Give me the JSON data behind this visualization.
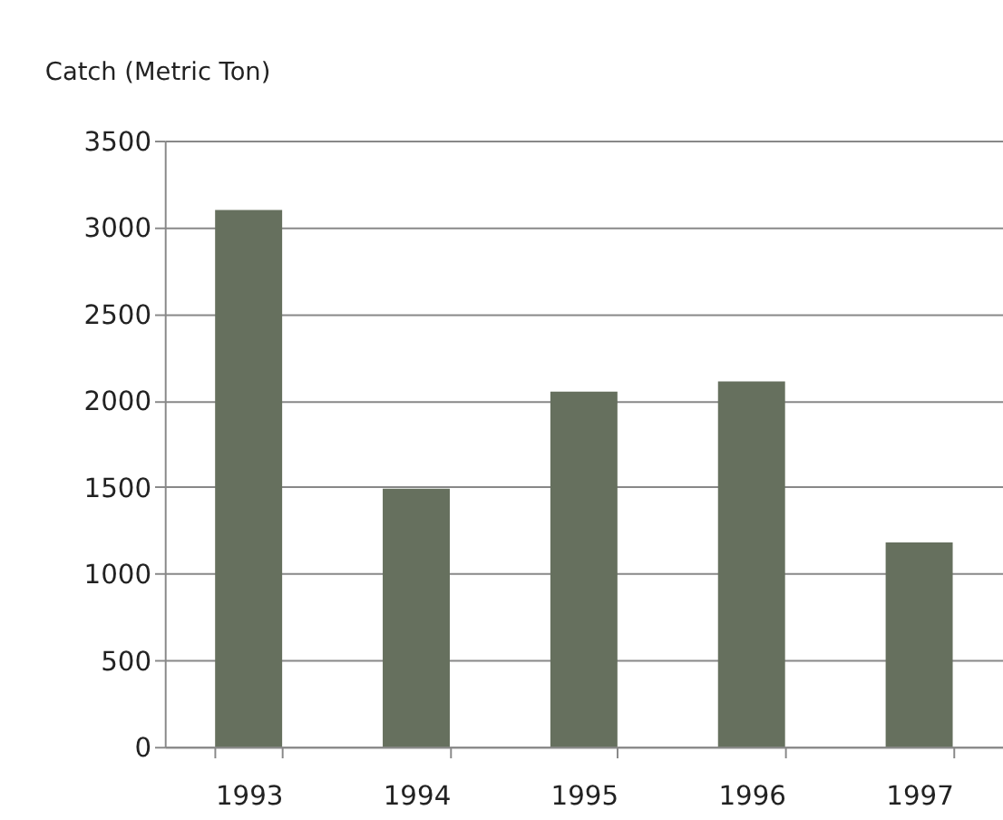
{
  "chart_data": {
    "type": "bar",
    "ylabel": "Catch (Metric Ton)",
    "categories": [
      "1993",
      "1994",
      "1995",
      "1996",
      "1997"
    ],
    "values": [
      3100,
      1490,
      2050,
      2110,
      1180
    ],
    "color": "#66705e",
    "ylim": [
      0,
      3500
    ],
    "yticks": [
      0,
      500,
      1000,
      1500,
      2000,
      2500,
      3000,
      3500
    ],
    "grid": "y"
  }
}
